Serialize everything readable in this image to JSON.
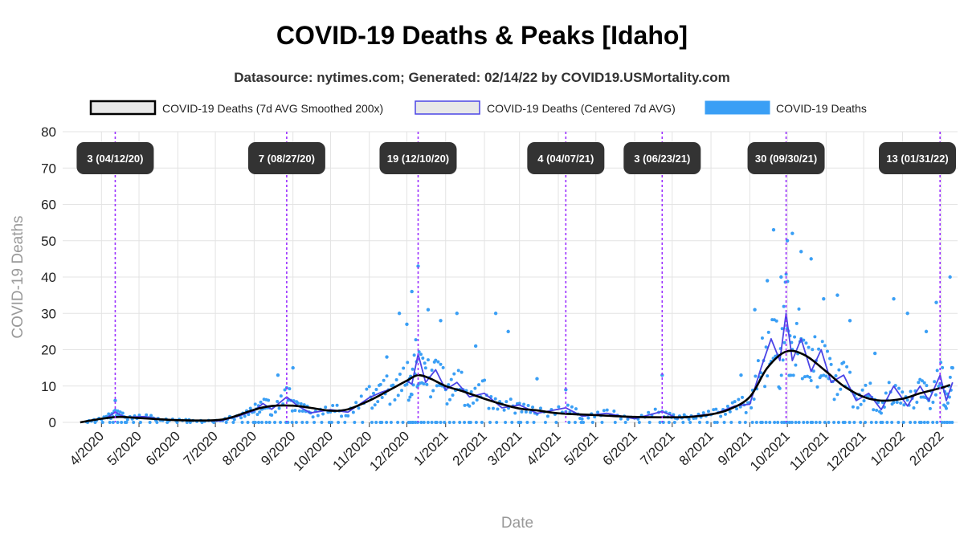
{
  "chart_data": {
    "type": "line",
    "title": "COVID-19 Deaths & Peaks [Idaho]",
    "subtitle": "Datasource: nytimes.com; Generated: 02/14/22 by COVID19.USMortality.com",
    "xlabel": "Date",
    "ylabel": "COVID-19 Deaths",
    "ylim": [
      0,
      80
    ],
    "yticks": [
      0,
      10,
      20,
      30,
      40,
      50,
      60,
      70,
      80
    ],
    "xlim": [
      "2020-03-01",
      "2022-02-14"
    ],
    "xticks": [
      {
        "date": "2020-04-01",
        "label": "4/2020"
      },
      {
        "date": "2020-05-01",
        "label": "5/2020"
      },
      {
        "date": "2020-06-01",
        "label": "6/2020"
      },
      {
        "date": "2020-07-01",
        "label": "7/2020"
      },
      {
        "date": "2020-08-01",
        "label": "8/2020"
      },
      {
        "date": "2020-09-01",
        "label": "9/2020"
      },
      {
        "date": "2020-10-01",
        "label": "10/2020"
      },
      {
        "date": "2020-11-01",
        "label": "11/2020"
      },
      {
        "date": "2020-12-01",
        "label": "12/2020"
      },
      {
        "date": "2021-01-01",
        "label": "1/2021"
      },
      {
        "date": "2021-02-01",
        "label": "2/2021"
      },
      {
        "date": "2021-03-01",
        "label": "3/2021"
      },
      {
        "date": "2021-04-01",
        "label": "4/2021"
      },
      {
        "date": "2021-05-01",
        "label": "5/2021"
      },
      {
        "date": "2021-06-01",
        "label": "6/2021"
      },
      {
        "date": "2021-07-01",
        "label": "7/2021"
      },
      {
        "date": "2021-08-01",
        "label": "8/2021"
      },
      {
        "date": "2021-09-01",
        "label": "9/2021"
      },
      {
        "date": "2021-10-01",
        "label": "10/2021"
      },
      {
        "date": "2021-11-01",
        "label": "11/2021"
      },
      {
        "date": "2021-12-01",
        "label": "12/2021"
      },
      {
        "date": "2022-01-01",
        "label": "1/2022"
      },
      {
        "date": "2022-02-01",
        "label": "2/2022"
      }
    ],
    "grid": true,
    "legend_placement": "top",
    "legend": [
      {
        "label": "COVID-19 Deaths (7d AVG Smoothed 200x)",
        "color": "#000000",
        "style": "smoothed"
      },
      {
        "label": "COVID-19 Deaths (Centered 7d AVG)",
        "color": "#4b45e6",
        "style": "avg"
      },
      {
        "label": "COVID-19 Deaths",
        "color": "#3a9ff5",
        "style": "points"
      }
    ],
    "peaks": [
      {
        "date": "2020-04-12",
        "label": "3 (04/12/20)"
      },
      {
        "date": "2020-08-27",
        "label": "7 (08/27/20)"
      },
      {
        "date": "2020-12-10",
        "label": "19 (12/10/20)"
      },
      {
        "date": "2021-04-07",
        "label": "4 (04/07/21)"
      },
      {
        "date": "2021-06-23",
        "label": "3 (06/23/21)"
      },
      {
        "date": "2021-09-30",
        "label": "30 (09/30/21)"
      },
      {
        "date": "2022-01-31",
        "label": "13 (01/31/22)"
      }
    ],
    "series": [
      {
        "name": "COVID-19 Deaths (7d AVG Smoothed 200x)",
        "color": "#000000",
        "points": [
          [
            "2020-03-15",
            0
          ],
          [
            "2020-04-01",
            1.0
          ],
          [
            "2020-04-15",
            1.5
          ],
          [
            "2020-05-01",
            1.2
          ],
          [
            "2020-06-01",
            0.6
          ],
          [
            "2020-07-01",
            0.6
          ],
          [
            "2020-07-15",
            1.5
          ],
          [
            "2020-08-01",
            3.5
          ],
          [
            "2020-08-15",
            4.5
          ],
          [
            "2020-09-01",
            4.6
          ],
          [
            "2020-09-15",
            4.0
          ],
          [
            "2020-10-01",
            3.2
          ],
          [
            "2020-10-15",
            3.6
          ],
          [
            "2020-11-01",
            6.0
          ],
          [
            "2020-11-15",
            8.5
          ],
          [
            "2020-12-01",
            11.5
          ],
          [
            "2020-12-10",
            13.0
          ],
          [
            "2020-12-20",
            12.0
          ],
          [
            "2021-01-01",
            10.0
          ],
          [
            "2021-01-15",
            8.5
          ],
          [
            "2021-02-01",
            6.5
          ],
          [
            "2021-02-15",
            5.0
          ],
          [
            "2021-03-01",
            3.8
          ],
          [
            "2021-03-15",
            3.3
          ],
          [
            "2021-04-01",
            2.5
          ],
          [
            "2021-05-01",
            2.0
          ],
          [
            "2021-06-01",
            1.5
          ],
          [
            "2021-07-01",
            1.4
          ],
          [
            "2021-07-15",
            1.5
          ],
          [
            "2021-08-01",
            2.2
          ],
          [
            "2021-08-15",
            3.5
          ],
          [
            "2021-09-01",
            7.0
          ],
          [
            "2021-09-15",
            15.0
          ],
          [
            "2021-09-30",
            19.5
          ],
          [
            "2021-10-15",
            18.5
          ],
          [
            "2021-11-01",
            14.0
          ],
          [
            "2021-11-15",
            10.0
          ],
          [
            "2021-12-01",
            7.0
          ],
          [
            "2021-12-15",
            6.0
          ],
          [
            "2022-01-01",
            6.5
          ],
          [
            "2022-01-15",
            8.0
          ],
          [
            "2022-02-01",
            9.5
          ],
          [
            "2022-02-08",
            10.3
          ]
        ]
      },
      {
        "name": "COVID-19 Deaths (Centered 7d AVG)",
        "color": "#4b45e6",
        "points": [
          [
            "2020-03-20",
            0.3
          ],
          [
            "2020-04-05",
            1.2
          ],
          [
            "2020-04-12",
            2.8
          ],
          [
            "2020-04-20",
            1.4
          ],
          [
            "2020-05-05",
            1.6
          ],
          [
            "2020-05-20",
            0.8
          ],
          [
            "2020-06-10",
            0.5
          ],
          [
            "2020-07-05",
            0.4
          ],
          [
            "2020-07-20",
            1.8
          ],
          [
            "2020-08-01",
            3.2
          ],
          [
            "2020-08-08",
            5.2
          ],
          [
            "2020-08-15",
            3.6
          ],
          [
            "2020-08-27",
            7.0
          ],
          [
            "2020-09-05",
            4.5
          ],
          [
            "2020-09-15",
            2.6
          ],
          [
            "2020-10-01",
            3.5
          ],
          [
            "2020-10-15",
            2.8
          ],
          [
            "2020-11-01",
            6.8
          ],
          [
            "2020-11-10",
            8.2
          ],
          [
            "2020-11-20",
            9.4
          ],
          [
            "2020-12-01",
            11.5
          ],
          [
            "2020-12-05",
            10.5
          ],
          [
            "2020-12-10",
            18.8
          ],
          [
            "2020-12-16",
            11.0
          ],
          [
            "2020-12-24",
            14.5
          ],
          [
            "2021-01-01",
            9.0
          ],
          [
            "2021-01-10",
            11.0
          ],
          [
            "2021-01-20",
            7.0
          ],
          [
            "2021-02-01",
            8.0
          ],
          [
            "2021-02-15",
            4.0
          ],
          [
            "2021-03-01",
            4.8
          ],
          [
            "2021-03-15",
            2.5
          ],
          [
            "2021-04-07",
            4.0
          ],
          [
            "2021-04-20",
            1.7
          ],
          [
            "2021-05-10",
            2.5
          ],
          [
            "2021-06-01",
            1.0
          ],
          [
            "2021-06-23",
            3.0
          ],
          [
            "2021-07-05",
            1.2
          ],
          [
            "2021-07-20",
            1.8
          ],
          [
            "2021-08-05",
            2.5
          ],
          [
            "2021-08-20",
            4.5
          ],
          [
            "2021-09-01",
            5.0
          ],
          [
            "2021-09-10",
            15.0
          ],
          [
            "2021-09-18",
            23.0
          ],
          [
            "2021-09-25",
            17.0
          ],
          [
            "2021-09-30",
            30.0
          ],
          [
            "2021-10-05",
            17.0
          ],
          [
            "2021-10-12",
            23.0
          ],
          [
            "2021-10-20",
            14.0
          ],
          [
            "2021-10-28",
            20.0
          ],
          [
            "2021-11-05",
            11.0
          ],
          [
            "2021-11-15",
            13.0
          ],
          [
            "2021-11-25",
            6.0
          ],
          [
            "2021-12-05",
            8.0
          ],
          [
            "2021-12-15",
            3.5
          ],
          [
            "2021-12-25",
            10.0
          ],
          [
            "2022-01-05",
            4.5
          ],
          [
            "2022-01-15",
            10.0
          ],
          [
            "2022-01-22",
            6.0
          ],
          [
            "2022-01-31",
            13.0
          ],
          [
            "2022-02-05",
            6.0
          ],
          [
            "2022-02-10",
            11.0
          ]
        ]
      },
      {
        "name": "COVID-19 Deaths",
        "color": "#3a9ff5",
        "type": "scatter",
        "points": [
          [
            "2020-04-12",
            6
          ],
          [
            "2020-08-20",
            13
          ],
          [
            "2020-09-01",
            15
          ],
          [
            "2020-11-15",
            18
          ],
          [
            "2020-11-25",
            30
          ],
          [
            "2020-12-01",
            27
          ],
          [
            "2020-12-05",
            36
          ],
          [
            "2020-12-10",
            43
          ],
          [
            "2020-12-18",
            31
          ],
          [
            "2020-12-28",
            28
          ],
          [
            "2021-01-10",
            30
          ],
          [
            "2021-01-25",
            21
          ],
          [
            "2021-02-10",
            30
          ],
          [
            "2021-02-20",
            25
          ],
          [
            "2021-03-15",
            12
          ],
          [
            "2021-04-07",
            9
          ],
          [
            "2021-06-23",
            13
          ],
          [
            "2021-08-25",
            13
          ],
          [
            "2021-09-05",
            31
          ],
          [
            "2021-09-15",
            39
          ],
          [
            "2021-09-20",
            53
          ],
          [
            "2021-09-26",
            40
          ],
          [
            "2021-10-01",
            50
          ],
          [
            "2021-10-05",
            52
          ],
          [
            "2021-10-12",
            47
          ],
          [
            "2021-10-20",
            45
          ],
          [
            "2021-10-30",
            34
          ],
          [
            "2021-11-10",
            35
          ],
          [
            "2021-11-20",
            28
          ],
          [
            "2021-12-10",
            19
          ],
          [
            "2021-12-25",
            34
          ],
          [
            "2022-01-05",
            30
          ],
          [
            "2022-01-20",
            25
          ],
          [
            "2022-01-28",
            33
          ],
          [
            "2022-02-08",
            40
          ],
          [
            "2022-02-10",
            15
          ]
        ]
      }
    ]
  }
}
